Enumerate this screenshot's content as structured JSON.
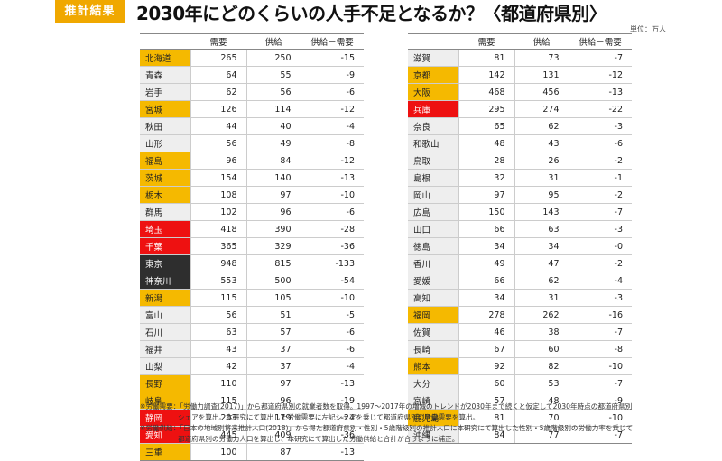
{
  "header": {
    "badge": "推計結果",
    "title": "2030年にどのくらいの人手不足となるか？〈都道府県別〉",
    "unit": "単位：万人"
  },
  "columns": [
    "",
    "需要",
    "供給",
    "供給－需要"
  ],
  "colors": {
    "yellow": "#f5b900",
    "red": "#ee1111",
    "black": "#2e2e2e",
    "none": "#eeeeee"
  },
  "left_rows": [
    [
      "北海道",
      "265",
      "250",
      "-15",
      "yellow"
    ],
    [
      "青森",
      "64",
      "55",
      "-9",
      "none"
    ],
    [
      "岩手",
      "62",
      "56",
      "-6",
      "none"
    ],
    [
      "宮城",
      "126",
      "114",
      "-12",
      "yellow"
    ],
    [
      "秋田",
      "44",
      "40",
      "-4",
      "none"
    ],
    [
      "山形",
      "56",
      "49",
      "-8",
      "none"
    ],
    [
      "福島",
      "96",
      "84",
      "-12",
      "yellow"
    ],
    [
      "茨城",
      "154",
      "140",
      "-13",
      "yellow"
    ],
    [
      "栃木",
      "108",
      "97",
      "-10",
      "yellow"
    ],
    [
      "群馬",
      "102",
      "96",
      "-6",
      "none"
    ],
    [
      "埼玉",
      "418",
      "390",
      "-28",
      "red"
    ],
    [
      "千葉",
      "365",
      "329",
      "-36",
      "red"
    ],
    [
      "東京",
      "948",
      "815",
      "-133",
      "black"
    ],
    [
      "神奈川",
      "553",
      "500",
      "-54",
      "black"
    ],
    [
      "新潟",
      "115",
      "105",
      "-10",
      "yellow"
    ],
    [
      "富山",
      "56",
      "51",
      "-5",
      "none"
    ],
    [
      "石川",
      "63",
      "57",
      "-6",
      "none"
    ],
    [
      "福井",
      "43",
      "37",
      "-6",
      "none"
    ],
    [
      "山梨",
      "42",
      "37",
      "-4",
      "none"
    ],
    [
      "長野",
      "110",
      "97",
      "-13",
      "yellow"
    ],
    [
      "岐阜",
      "115",
      "96",
      "-19",
      "yellow"
    ],
    [
      "静岡",
      "203",
      "179",
      "-24",
      "red"
    ],
    [
      "愛知",
      "445",
      "409",
      "-36",
      "red"
    ],
    [
      "三重",
      "100",
      "87",
      "-13",
      "yellow"
    ]
  ],
  "right_rows": [
    [
      "滋賀",
      "81",
      "73",
      "-7",
      "none"
    ],
    [
      "京都",
      "142",
      "131",
      "-12",
      "yellow"
    ],
    [
      "大阪",
      "468",
      "456",
      "-13",
      "yellow"
    ],
    [
      "兵庫",
      "295",
      "274",
      "-22",
      "red"
    ],
    [
      "奈良",
      "65",
      "62",
      "-3",
      "none"
    ],
    [
      "和歌山",
      "48",
      "43",
      "-6",
      "none"
    ],
    [
      "鳥取",
      "28",
      "26",
      "-2",
      "none"
    ],
    [
      "島根",
      "32",
      "31",
      "-1",
      "none"
    ],
    [
      "岡山",
      "97",
      "95",
      "-2",
      "none"
    ],
    [
      "広島",
      "150",
      "143",
      "-7",
      "none"
    ],
    [
      "山口",
      "66",
      "63",
      "-3",
      "none"
    ],
    [
      "徳島",
      "34",
      "34",
      "-0",
      "none"
    ],
    [
      "香川",
      "49",
      "47",
      "-2",
      "none"
    ],
    [
      "愛媛",
      "66",
      "62",
      "-4",
      "none"
    ],
    [
      "高知",
      "34",
      "31",
      "-3",
      "none"
    ],
    [
      "福岡",
      "278",
      "262",
      "-16",
      "yellow"
    ],
    [
      "佐賀",
      "46",
      "38",
      "-7",
      "none"
    ],
    [
      "長崎",
      "67",
      "60",
      "-8",
      "none"
    ],
    [
      "熊本",
      "92",
      "82",
      "-10",
      "yellow"
    ],
    [
      "大分",
      "60",
      "53",
      "-7",
      "none"
    ],
    [
      "宮崎",
      "57",
      "48",
      "-9",
      "none"
    ],
    [
      "鹿児島",
      "81",
      "70",
      "-10",
      "yellow"
    ],
    [
      "沖縄",
      "84",
      "77",
      "-7",
      "none"
    ]
  ],
  "notes": [
    "※労働需要：「労働力調査(2017)」から都道府県別の就業者数を取得。1997～2017年の増減のトレンドが2030年まで続くと仮定して2030年時点の都道府県別",
    "シェアを算出。本研究にて算出した労働需要に左記シェアを乗じて都道府県別の労働需要を算出。",
    "※労働供給：「日本の地域別将来推計人口(2018)」から得た都道府県別・性別・5歳階級別の推計人口に本研究にて算出した性別・5歳階級別の労働力率を乗じて",
    "都道府県別の労働力人口を算出し、本研究にて算出した労働供給と合計が合うように補正。"
  ]
}
